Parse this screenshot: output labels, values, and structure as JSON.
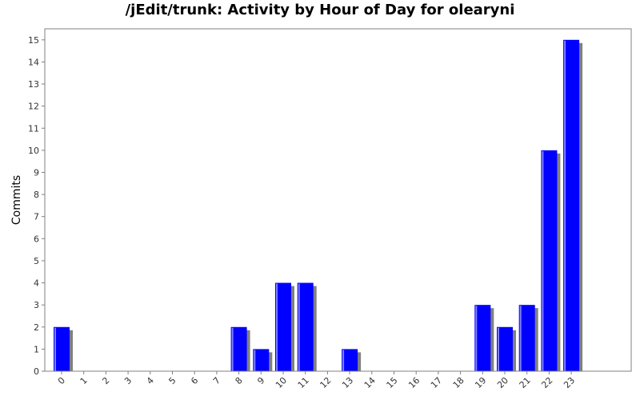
{
  "chart_data": {
    "type": "bar",
    "title": "/jEdit/trunk: Activity by Hour of Day for olearyni",
    "xlabel": "",
    "ylabel": "Commits",
    "categories": [
      "0",
      "1",
      "2",
      "3",
      "4",
      "5",
      "6",
      "7",
      "8",
      "9",
      "10",
      "11",
      "12",
      "13",
      "14",
      "15",
      "16",
      "17",
      "18",
      "19",
      "20",
      "21",
      "22",
      "23"
    ],
    "values": [
      2,
      0,
      0,
      0,
      0,
      0,
      0,
      0,
      2,
      1,
      4,
      4,
      0,
      1,
      0,
      0,
      0,
      0,
      0,
      3,
      2,
      3,
      10,
      15
    ],
    "y_ticks": [
      "0",
      "1",
      "2",
      "3",
      "4",
      "5",
      "6",
      "7",
      "8",
      "9",
      "10",
      "11",
      "12",
      "13",
      "14",
      "15"
    ],
    "ylim": [
      0,
      15.5
    ],
    "grid": false,
    "colors": {
      "bar": "#0000ff",
      "bar_highlight": "#8080ff",
      "shadow": "#808080",
      "axis": "#808080",
      "plot_border": "#808080"
    }
  }
}
